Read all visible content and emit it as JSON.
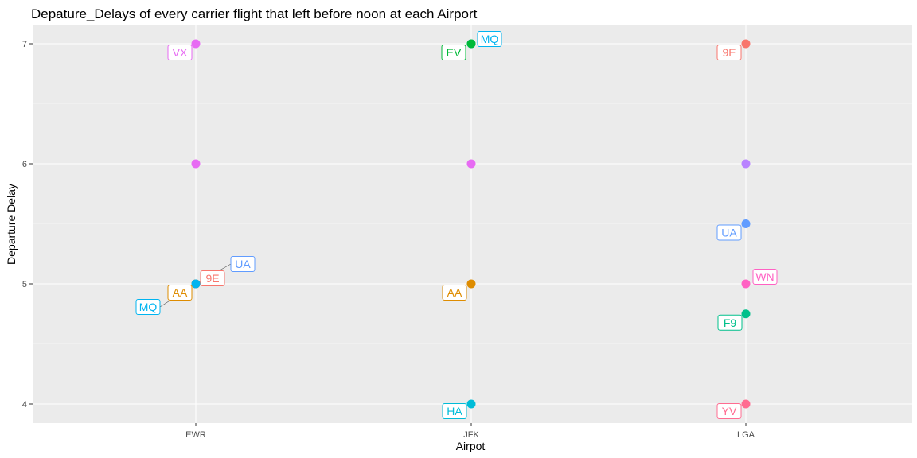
{
  "chart_data": {
    "type": "scatter",
    "title": "Depature_Delays of every carrier flight that left before noon at each Airport",
    "xlabel": "Airpot",
    "ylabel": "Departure Delay",
    "categories": [
      "EWR",
      "JFK",
      "LGA"
    ],
    "ylim": [
      3.7,
      7.15
    ],
    "yticks": [
      4,
      5,
      6,
      7
    ],
    "grid": true,
    "legend": "none",
    "points": [
      {
        "airport": "EWR",
        "carrier": "VX",
        "delay": 7,
        "color": "#E76BF3",
        "label": "VX"
      },
      {
        "airport": "EWR",
        "carrier": "VX",
        "delay": 6,
        "color": "#E76BF3",
        "label": ""
      },
      {
        "airport": "EWR",
        "carrier": "UA",
        "delay": 5,
        "color": "#619CFF",
        "label": "UA"
      },
      {
        "airport": "EWR",
        "carrier": "9E",
        "delay": 5,
        "color": "#F8766D",
        "label": "9E"
      },
      {
        "airport": "EWR",
        "carrier": "AA",
        "delay": 5,
        "color": "#DE8C00",
        "label": "AA"
      },
      {
        "airport": "EWR",
        "carrier": "MQ",
        "delay": 5,
        "color": "#00B4F0",
        "label": "MQ"
      },
      {
        "airport": "JFK",
        "carrier": "MQ",
        "delay": 7,
        "color": "#00B4F0",
        "label": "MQ"
      },
      {
        "airport": "JFK",
        "carrier": "EV",
        "delay": 7,
        "color": "#00BA38",
        "label": "EV"
      },
      {
        "airport": "JFK",
        "carrier": "VX",
        "delay": 6,
        "color": "#E76BF3",
        "label": ""
      },
      {
        "airport": "JFK",
        "carrier": "AA",
        "delay": 5,
        "color": "#DE8C00",
        "label": "AA"
      },
      {
        "airport": "JFK",
        "carrier": "HA",
        "delay": 4,
        "color": "#00BCD8",
        "label": "HA"
      },
      {
        "airport": "LGA",
        "carrier": "9E",
        "delay": 7,
        "color": "#F8766D",
        "label": "9E"
      },
      {
        "airport": "LGA",
        "carrier": "",
        "delay": 6,
        "color": "#B983FF",
        "label": ""
      },
      {
        "airport": "LGA",
        "carrier": "UA",
        "delay": 5.5,
        "color": "#619CFF",
        "label": "UA"
      },
      {
        "airport": "LGA",
        "carrier": "WN",
        "delay": 5,
        "color": "#FF61C3",
        "label": "WN"
      },
      {
        "airport": "LGA",
        "carrier": "F9",
        "delay": 4.75,
        "color": "#00C08B",
        "label": "F9"
      },
      {
        "airport": "LGA",
        "carrier": "YV",
        "delay": 4,
        "color": "#FF6C91",
        "label": "YV"
      }
    ]
  }
}
